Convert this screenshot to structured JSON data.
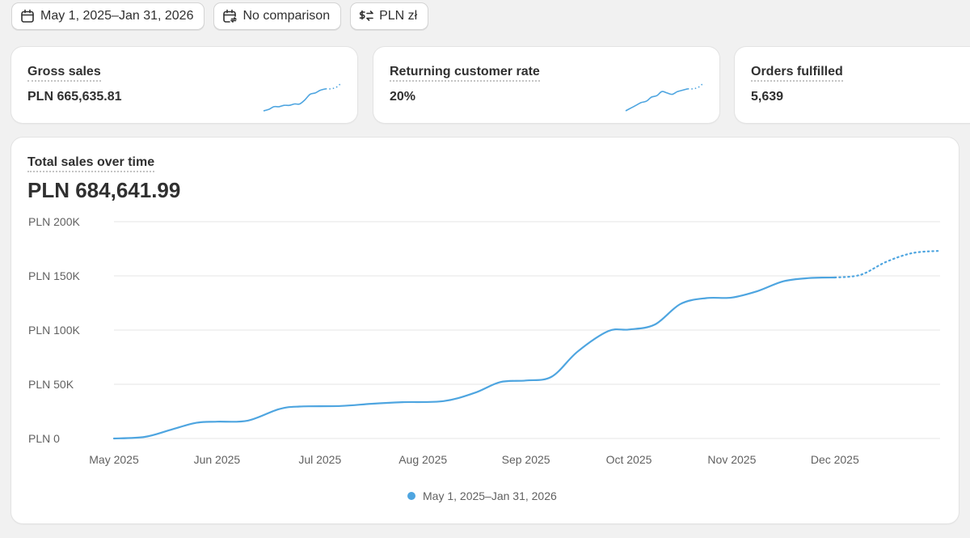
{
  "toolbar": {
    "date_range": "May 1, 2025–Jan 31, 2026",
    "comparison": "No comparison",
    "currency": "PLN zł"
  },
  "metrics": [
    {
      "label": "Gross sales",
      "value": "PLN 665,635.81"
    },
    {
      "label": "Returning customer rate",
      "value": "20%"
    },
    {
      "label": "Orders fulfilled",
      "value": "5,639"
    }
  ],
  "sales_card": {
    "title": "Total sales over time",
    "total": "PLN 684,641.99",
    "legend_label": "May 1, 2025–Jan 31, 2026"
  },
  "colors": {
    "series": "#4ea5e0",
    "grid": "#e6e6e6",
    "axis_text": "#616161"
  },
  "chart_data": {
    "type": "line",
    "title": "Total sales over time",
    "series_name": "May 1, 2025–Jan 31, 2026",
    "y_tick_labels": [
      "PLN 0",
      "PLN 50K",
      "PLN 100K",
      "PLN 150K",
      "PLN 200K"
    ],
    "y_ticks": [
      0,
      50000,
      100000,
      150000,
      200000
    ],
    "ylim": [
      0,
      200000
    ],
    "x_tick_labels": [
      "May 2025",
      "Jun 2025",
      "Jul 2025",
      "Aug 2025",
      "Sep 2025",
      "Oct 2025",
      "Nov 2025",
      "Dec 2025"
    ],
    "xlim": [
      0,
      8
    ],
    "points": [
      [
        0,
        0
      ],
      [
        0.3,
        1500
      ],
      [
        0.55,
        8000
      ],
      [
        0.8,
        14500
      ],
      [
        1.0,
        15500
      ],
      [
        1.3,
        16500
      ],
      [
        1.6,
        27000
      ],
      [
        1.8,
        29500
      ],
      [
        2.2,
        30000
      ],
      [
        2.5,
        32000
      ],
      [
        2.8,
        33500
      ],
      [
        3.2,
        34500
      ],
      [
        3.5,
        42000
      ],
      [
        3.75,
        52000
      ],
      [
        4.0,
        53500
      ],
      [
        4.25,
        57000
      ],
      [
        4.5,
        80000
      ],
      [
        4.8,
        99000
      ],
      [
        5.0,
        100500
      ],
      [
        5.25,
        105000
      ],
      [
        5.5,
        124000
      ],
      [
        5.75,
        129500
      ],
      [
        6.0,
        130000
      ],
      [
        6.25,
        136000
      ],
      [
        6.5,
        145000
      ],
      [
        6.75,
        148000
      ],
      [
        7.0,
        148500
      ]
    ],
    "projected_points": [
      [
        7.0,
        148500
      ],
      [
        7.25,
        151000
      ],
      [
        7.5,
        163000
      ],
      [
        7.75,
        171000
      ],
      [
        8.0,
        173000
      ]
    ],
    "projected_style": "dotted"
  },
  "sparklines": [
    {
      "solid": [
        10,
        11,
        13,
        13,
        14,
        14,
        15,
        15,
        18,
        22,
        23,
        25,
        26
      ],
      "dotted": [
        26,
        27,
        30
      ]
    },
    {
      "solid": [
        10,
        12,
        14,
        16,
        17,
        20,
        21,
        24,
        23,
        22,
        24,
        25,
        26
      ],
      "dotted": [
        26,
        27,
        30
      ]
    }
  ]
}
